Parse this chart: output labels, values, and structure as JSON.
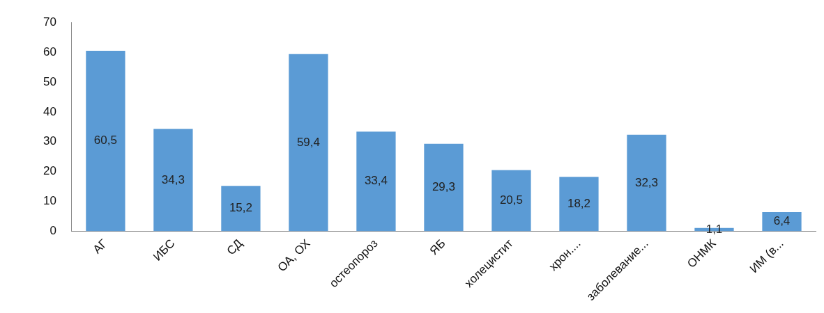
{
  "chart_data": {
    "type": "bar",
    "categories": [
      "АГ",
      "ИБС",
      "СД",
      "ОА, ОХ",
      "остеопороз",
      "ЯБ",
      "холецистит",
      "хрон....",
      "заболевание...",
      "ОНМК",
      "ИМ (в..."
    ],
    "values": [
      60.5,
      34.3,
      15.2,
      59.4,
      33.4,
      29.3,
      20.5,
      18.2,
      32.3,
      1.1,
      6.4
    ],
    "value_labels": [
      "60,5",
      "34,3",
      "15,2",
      "59,4",
      "33,4",
      "29,3",
      "20,5",
      "18,2",
      "32,3",
      "1,1",
      "6,4"
    ],
    "color": "#5b9bd5",
    "ylim": [
      0,
      70
    ],
    "yticks": [
      0,
      10,
      20,
      30,
      40,
      50,
      60,
      70
    ],
    "grid": false,
    "legend": false
  }
}
